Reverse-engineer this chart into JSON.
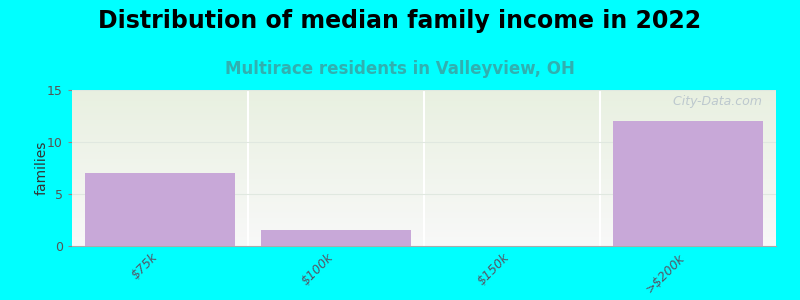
{
  "title": "Distribution of median family income in 2022",
  "subtitle": "Multirace residents in Valleyview, OH",
  "categories": [
    "$75k",
    "$100k",
    "$150k",
    ">$200k"
  ],
  "values": [
    7,
    1.5,
    0,
    12
  ],
  "bar_color": "#c8a8d8",
  "ylabel": "families",
  "ylim": [
    0,
    15
  ],
  "yticks": [
    0,
    5,
    10,
    15
  ],
  "background_color": "#00ffff",
  "plot_bg_top": "#e8f0e0",
  "plot_bg_bottom": "#f8f8f8",
  "title_fontsize": 17,
  "subtitle_fontsize": 12,
  "subtitle_color": "#30b0b0",
  "watermark": " City-Data.com",
  "watermark_color": "#b8c4cc",
  "title_fontweight": "bold",
  "divider_color": "#ffffff",
  "grid_color": "#e0e8e0"
}
